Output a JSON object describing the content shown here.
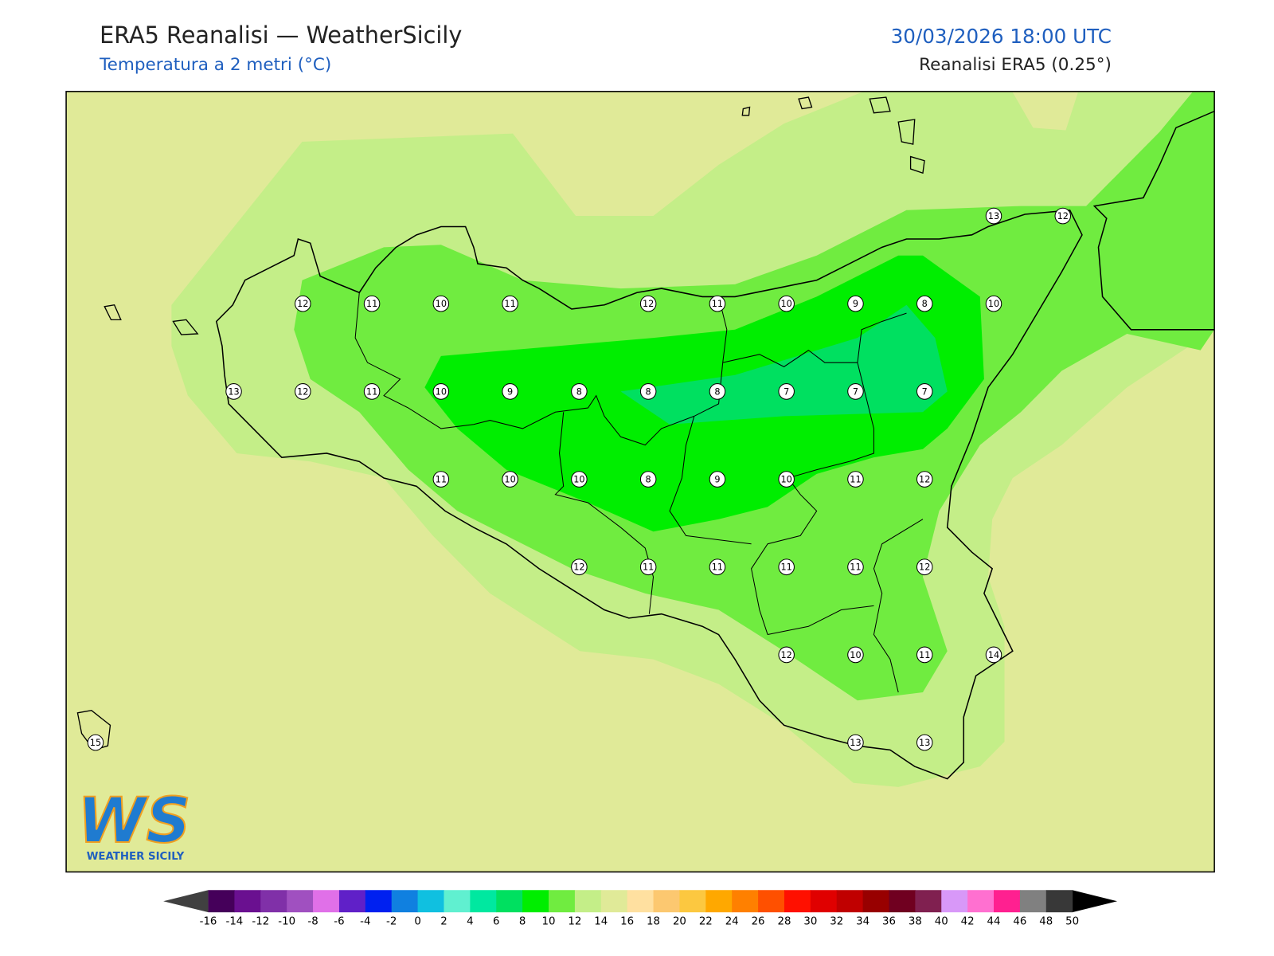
{
  "header": {
    "title": "ERA5 Reanalisi — WeatherSicily",
    "subtitle": "Temperatura a 2 metri (°C)",
    "valid_time": "30/03/2026 18:00 UTC",
    "source": "Reanalisi ERA5 (0.25°)"
  },
  "map": {
    "stations": {
      "rows": [
        [
          null,
          null,
          null,
          null,
          null,
          null,
          null,
          null,
          null,
          null,
          null,
          null,
          null,
          13,
          12
        ],
        [
          null,
          null,
          null,
          12,
          11,
          10,
          11,
          null,
          12,
          11,
          10,
          9,
          8,
          10,
          null
        ],
        [
          null,
          null,
          13,
          12,
          11,
          10,
          9,
          8,
          8,
          8,
          7,
          7,
          7,
          null,
          null
        ],
        [
          null,
          null,
          null,
          null,
          null,
          11,
          10,
          10,
          8,
          9,
          10,
          11,
          12,
          null,
          null
        ],
        [
          null,
          null,
          null,
          null,
          null,
          null,
          null,
          12,
          11,
          11,
          11,
          11,
          12,
          null,
          null
        ],
        [
          null,
          null,
          null,
          null,
          null,
          null,
          null,
          null,
          null,
          null,
          12,
          10,
          11,
          14,
          null
        ],
        [
          15,
          null,
          null,
          null,
          null,
          null,
          null,
          null,
          null,
          null,
          null,
          13,
          13,
          null,
          null
        ]
      ]
    }
  },
  "colorbar": {
    "ticks": [
      -16,
      -14,
      -12,
      -10,
      -8,
      -6,
      -4,
      -2,
      0,
      2,
      4,
      6,
      8,
      10,
      12,
      14,
      16,
      18,
      20,
      22,
      24,
      26,
      28,
      30,
      32,
      34,
      36,
      38,
      40,
      42,
      44,
      46,
      48,
      50
    ],
    "colors": [
      "#45005a",
      "#6a1090",
      "#8030a8",
      "#a050c0",
      "#e070e8",
      "#6020c8",
      "#0020f0",
      "#1080e0",
      "#10c0e0",
      "#60f0d0",
      "#00e8a0",
      "#00e060",
      "#00ee00",
      "#70ec40",
      "#c4ee88",
      "#e0ea98",
      "#ffe0a0",
      "#fcc870",
      "#fcc840",
      "#ffa800",
      "#ff8000",
      "#ff5000",
      "#ff1000",
      "#e00000",
      "#c00000",
      "#980000",
      "#700020",
      "#802050",
      "#d898f8",
      "#ff70d0",
      "#ff2090",
      "#808080",
      "#383838"
    ],
    "under_color": "#404040",
    "over_color": "#000000"
  },
  "logo": {
    "mark": "WS",
    "text": "WEATHER SICILY"
  }
}
